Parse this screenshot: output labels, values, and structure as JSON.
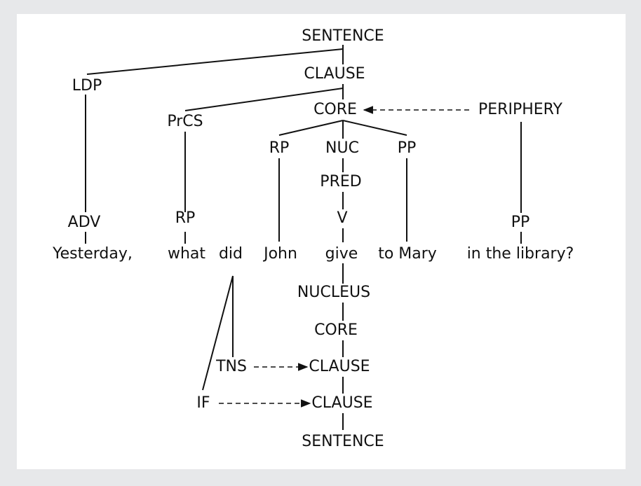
{
  "colors": {
    "background": "#e7e8ea",
    "panel": "#ffffff",
    "ink": "#111111"
  },
  "upper": {
    "sentence": "SENTENCE",
    "clause": "CLAUSE",
    "core": "CORE",
    "periphery": "PERIPHERY",
    "ldp": "LDP",
    "prcs": "PrCS",
    "rp1": "RP",
    "nuc": "NUC",
    "pp1": "PP",
    "pred": "PRED",
    "adv": "ADV",
    "rp2": "RP",
    "v": "V",
    "pp2": "PP"
  },
  "words": {
    "yesterday": "Yesterday,",
    "what": "what",
    "did": "did",
    "john": "John",
    "give": "give",
    "to_mary": "to Mary",
    "in_the_library": "in the library?"
  },
  "lower": {
    "nucleus": "NUCLEUS",
    "core": "CORE",
    "tns": "TNS",
    "clause1": "CLAUSE",
    "if": "IF",
    "clause2": "CLAUSE",
    "sentence": "SENTENCE"
  }
}
